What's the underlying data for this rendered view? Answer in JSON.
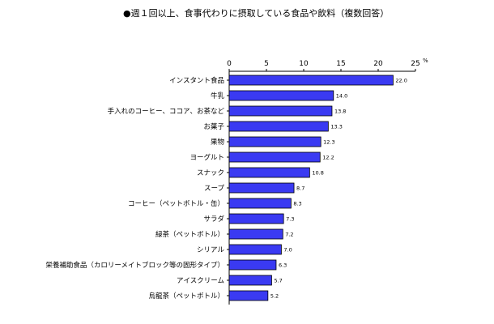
{
  "chart_data": {
    "type": "bar",
    "orientation": "horizontal",
    "title": "●週１回以上、食事代わりに摂取している食品や飲料（複数回答）",
    "unit": "%",
    "categories": [
      "インスタント食品",
      "牛乳",
      "手入れのコーヒー、ココア、お茶など",
      "お菓子",
      "果物",
      "ヨーグルト",
      "スナック",
      "スープ",
      "コーヒー（ペットボトル・缶）",
      "サラダ",
      "緑茶（ペットボトル）",
      "シリアル",
      "栄養補助食品（カロリーメイトブロック等の固形タイプ）",
      "アイスクリーム",
      "烏龍茶（ペットボトル）"
    ],
    "values": [
      22.0,
      14.0,
      13.8,
      13.3,
      12.3,
      12.2,
      10.8,
      8.7,
      8.3,
      7.3,
      7.2,
      7.0,
      6.3,
      5.7,
      5.2
    ],
    "value_labels": [
      "22.0",
      "14.0",
      "13.8",
      "13.3",
      "12.3",
      "12.2",
      "10.8",
      "8.7",
      "8.3",
      "7.3",
      "7.2",
      "7.0",
      "6.3",
      "5.7",
      "5.2"
    ],
    "x_ticks": [
      0,
      5,
      10,
      15,
      20,
      25
    ],
    "xlim": [
      0,
      25
    ],
    "grid": false,
    "legend": "none",
    "bar_color": "#3a3af2",
    "bar_edge_color": "#000000"
  }
}
